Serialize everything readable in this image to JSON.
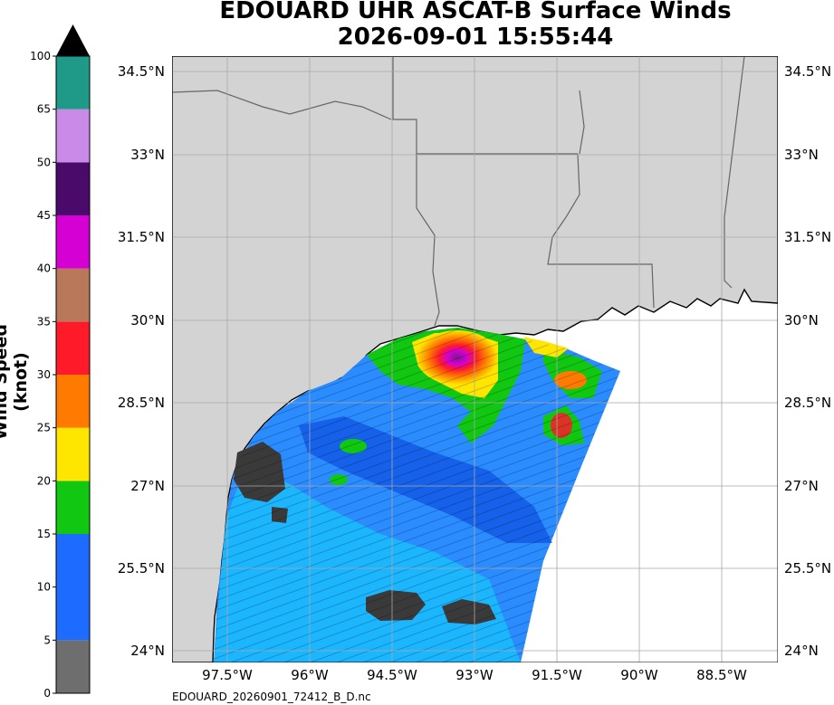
{
  "title": {
    "line1": "EDOUARD UHR ASCAT-B Surface Winds",
    "line2": "2026-09-01 15:55:44"
  },
  "footer": "EDOUARD_20260901_72412_B_D.nc",
  "colorbar": {
    "label": "Wind Speed (knot)",
    "ticks": [
      "0",
      "5",
      "10",
      "15",
      "20",
      "25",
      "30",
      "35",
      "40",
      "45",
      "50",
      "65",
      "100"
    ],
    "segments": [
      {
        "from": 0,
        "to": 5,
        "color": "#6e6e6e"
      },
      {
        "from": 5,
        "to": 15,
        "color": "#1e6cff"
      },
      {
        "from": 15,
        "to": 20,
        "color": "#11c711"
      },
      {
        "from": 20,
        "to": 25,
        "color": "#ffe600"
      },
      {
        "from": 25,
        "to": 30,
        "color": "#ff7a00"
      },
      {
        "from": 30,
        "to": 35,
        "color": "#ff1a2a"
      },
      {
        "from": 35,
        "to": 40,
        "color": "#b9785a"
      },
      {
        "from": 40,
        "to": 45,
        "color": "#d400d4"
      },
      {
        "from": 45,
        "to": 50,
        "color": "#4a0a6a"
      },
      {
        "from": 50,
        "to": 65,
        "color": "#c98ae8"
      },
      {
        "from": 65,
        "to": 100,
        "color": "#1f9a88"
      }
    ]
  },
  "map": {
    "lat_labels": [
      "34.5°N",
      "33°N",
      "31.5°N",
      "30°N",
      "28.5°N",
      "27°N",
      "25.5°N",
      "24°N"
    ],
    "lon_labels": [
      "97.5°W",
      "96°W",
      "94.5°W",
      "93°W",
      "91.5°W",
      "90°W",
      "88.5°W"
    ],
    "land_color": "#d3d3d3",
    "ocean_color": "#ffffff",
    "grid_color": "#a8a8a8"
  }
}
